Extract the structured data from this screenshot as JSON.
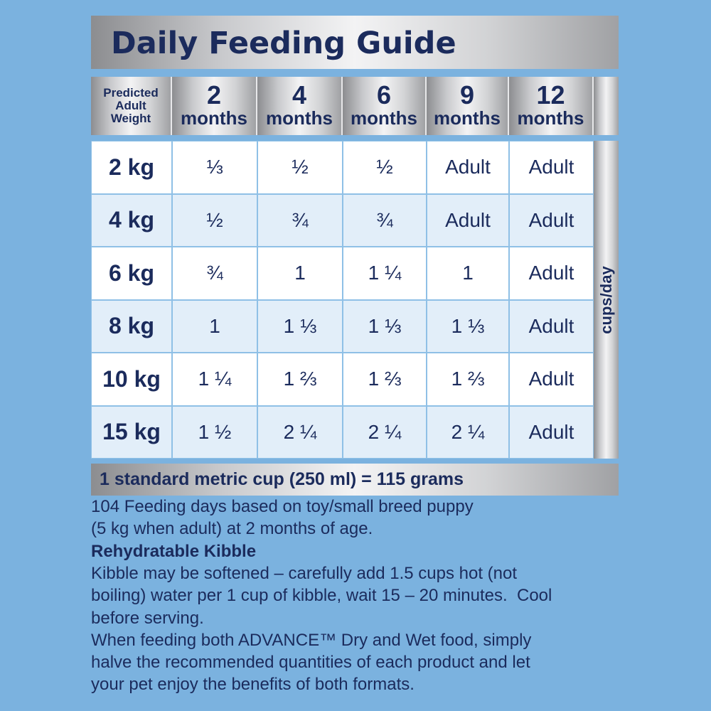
{
  "header": {
    "title": "Daily Feeding Guide"
  },
  "table": {
    "corner_label": [
      "Predicted",
      "Adult",
      "Weight"
    ],
    "columns": [
      {
        "number": "2",
        "unit": "months"
      },
      {
        "number": "4",
        "unit": "months"
      },
      {
        "number": "6",
        "unit": "months"
      },
      {
        "number": "9",
        "unit": "months"
      },
      {
        "number": "12",
        "unit": "months"
      }
    ],
    "rows": [
      [
        "2 kg",
        "⅓",
        "½",
        "½",
        "Adult",
        "Adult"
      ],
      [
        "4 kg",
        "½",
        "¾",
        "¾",
        "Adult",
        "Adult"
      ],
      [
        "6 kg",
        "¾",
        "1",
        "1 ¼",
        "1",
        "Adult"
      ],
      [
        "8 kg",
        "1",
        "1 ⅓",
        "1 ⅓",
        "1 ⅓",
        "Adult"
      ],
      [
        "10 kg",
        "1 ¼",
        "1 ⅔",
        "1 ⅔",
        "1 ⅔",
        "Adult"
      ],
      [
        "15 kg",
        "1 ½",
        "2 ¼",
        "2 ¼",
        "2 ¼",
        "Adult"
      ]
    ],
    "side_label": "cups/day"
  },
  "footer_bar": "1 standard metric cup (250 ml) = 115 grams",
  "notes": [
    {
      "lines": [
        "104 Feeding days based on toy/small breed puppy",
        "(5 kg when adult) at 2 months of age."
      ]
    },
    {
      "heading": "Rehydratable Kibble",
      "lines": [
        "Kibble may be softened – carefully add 1.5 cups hot (not",
        "boiling) water per 1 cup of kibble, wait 15 – 20 minutes.  Cool",
        "before serving."
      ]
    },
    {
      "lines": [
        "When feeding both ADVANCE™ Dry and Wet food, simply",
        "halve the recommended quantities of each product and let",
        "your pet enjoy the benefits of both formats."
      ]
    }
  ]
}
